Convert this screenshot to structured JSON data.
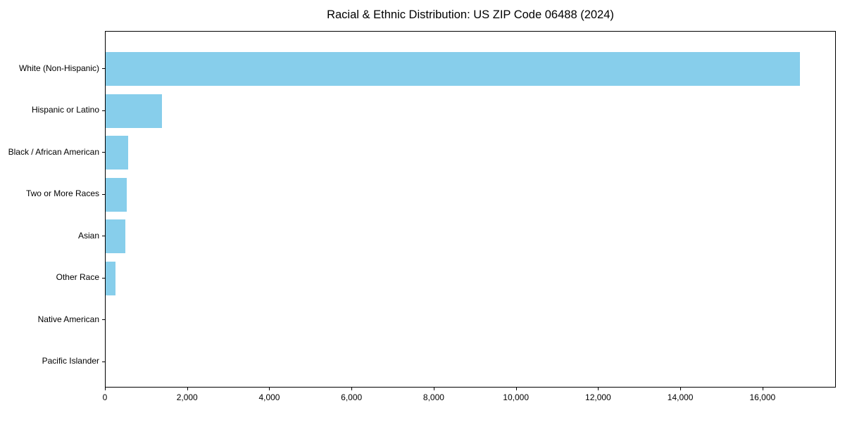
{
  "chart_data": {
    "type": "bar",
    "orientation": "horizontal",
    "title": "Racial & Ethnic Distribution: US ZIP Code 06488 (2024)",
    "categories": [
      "White (Non-Hispanic)",
      "Hispanic or Latino",
      "Black / African American",
      "Two or More Races",
      "Asian",
      "Other Race",
      "Native American",
      "Pacific Islander"
    ],
    "values": [
      16900,
      1370,
      550,
      515,
      475,
      235,
      0,
      0
    ],
    "xlabel": "",
    "ylabel": "",
    "xlim": [
      0,
      17750
    ],
    "xticks": [
      0,
      2000,
      4000,
      6000,
      8000,
      10000,
      12000,
      14000,
      16000
    ],
    "xtick_labels": [
      "0",
      "2,000",
      "4,000",
      "6,000",
      "8,000",
      "10,000",
      "12,000",
      "14,000",
      "16,000"
    ],
    "bar_color": "#87CEEB",
    "spine_color": "#000000",
    "text_color": "#000000",
    "grid": false,
    "legend": false
  }
}
